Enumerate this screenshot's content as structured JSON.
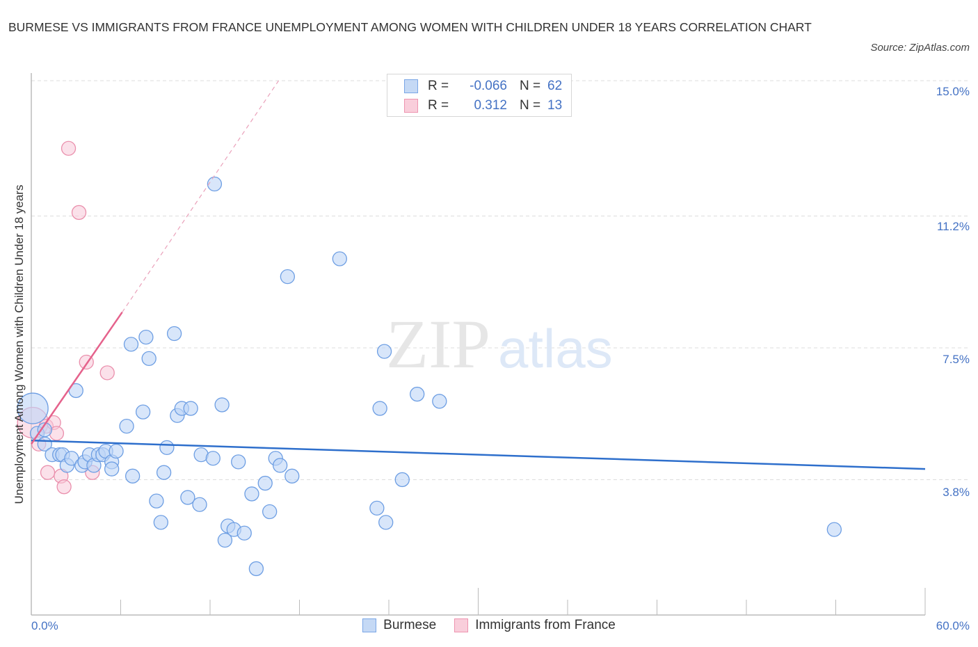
{
  "header": {
    "title": "BURMESE VS IMMIGRANTS FROM FRANCE UNEMPLOYMENT AMONG WOMEN WITH CHILDREN UNDER 18 YEARS CORRELATION CHART",
    "source": "Source: ZipAtlas.com"
  },
  "legend": {
    "series": [
      {
        "name": "Burmese",
        "r_label": "R =",
        "r_value": "-0.066",
        "n_label": "N =",
        "n_value": "62",
        "fill": "#c5d9f5",
        "stroke": "#7aa6e6"
      },
      {
        "name": "Immigrants from France",
        "r_label": "R =",
        "r_value": "0.312",
        "n_label": "N =",
        "n_value": "13",
        "fill": "#f9cedb",
        "stroke": "#ee94b0"
      }
    ]
  },
  "axes": {
    "ylabel": "Unemployment Among Women with Children Under 18 years",
    "yticks": [
      "15.0%",
      "11.2%",
      "7.5%",
      "3.8%"
    ],
    "xticks": [
      "0.0%",
      "60.0%"
    ]
  },
  "watermark": {
    "zip": "ZIP",
    "atlas": "atlas"
  },
  "colors": {
    "burmese_line": "#2e6fcc",
    "france_line": "#e5628c",
    "tick_text": "#4472c4",
    "grid": "#dddddd"
  },
  "chart_data": {
    "type": "scatter",
    "title": "BURMESE VS IMMIGRANTS FROM FRANCE UNEMPLOYMENT AMONG WOMEN WITH CHILDREN UNDER 18 YEARS CORRELATION CHART",
    "xlabel": "",
    "ylabel": "Unemployment Among Women with Children Under 18 years",
    "xlim": [
      0,
      60
    ],
    "ylim": [
      0,
      15.5
    ],
    "x_unit": "%",
    "y_unit": "%",
    "grid": true,
    "legend_position": "top-center",
    "yticks": [
      3.8,
      7.5,
      11.2,
      15.0
    ],
    "series": [
      {
        "name": "Burmese",
        "R": -0.066,
        "N": 62,
        "trend": {
          "x": [
            0,
            60
          ],
          "y": [
            4.9,
            4.1
          ]
        },
        "points": [
          [
            0.1,
            5.8,
            "large"
          ],
          [
            0.4,
            5.1
          ],
          [
            0.9,
            5.2
          ],
          [
            0.9,
            4.8
          ],
          [
            1.4,
            4.5
          ],
          [
            1.9,
            4.5
          ],
          [
            2.1,
            4.5
          ],
          [
            2.4,
            4.2
          ],
          [
            2.7,
            4.4
          ],
          [
            3.0,
            6.3
          ],
          [
            3.4,
            4.2
          ],
          [
            3.6,
            4.3
          ],
          [
            3.9,
            4.5
          ],
          [
            4.2,
            4.2
          ],
          [
            4.5,
            4.5
          ],
          [
            4.8,
            4.5
          ],
          [
            5.0,
            4.6
          ],
          [
            5.4,
            4.3
          ],
          [
            5.7,
            4.6
          ],
          [
            6.4,
            5.3
          ],
          [
            5.4,
            4.1
          ],
          [
            6.8,
            3.9
          ],
          [
            6.7,
            7.6
          ],
          [
            7.5,
            5.7
          ],
          [
            7.7,
            7.8
          ],
          [
            7.9,
            7.2
          ],
          [
            8.4,
            3.2
          ],
          [
            8.7,
            2.6
          ],
          [
            8.9,
            4.0
          ],
          [
            9.1,
            4.7
          ],
          [
            9.6,
            7.9
          ],
          [
            9.8,
            5.6
          ],
          [
            10.1,
            5.8
          ],
          [
            10.7,
            5.8
          ],
          [
            10.5,
            3.3
          ],
          [
            11.3,
            3.1
          ],
          [
            11.4,
            4.5
          ],
          [
            12.2,
            4.4
          ],
          [
            12.3,
            12.1
          ],
          [
            12.8,
            5.9
          ],
          [
            13.0,
            2.1
          ],
          [
            13.2,
            2.5
          ],
          [
            13.6,
            2.4
          ],
          [
            13.9,
            4.3
          ],
          [
            14.3,
            2.3
          ],
          [
            14.8,
            3.4
          ],
          [
            15.1,
            1.3
          ],
          [
            15.7,
            3.7
          ],
          [
            16.0,
            2.9
          ],
          [
            16.4,
            4.4
          ],
          [
            16.7,
            4.2
          ],
          [
            17.2,
            9.5
          ],
          [
            17.5,
            3.9
          ],
          [
            20.7,
            10.0
          ],
          [
            23.2,
            3.0
          ],
          [
            23.7,
            7.4
          ],
          [
            23.4,
            5.8
          ],
          [
            23.8,
            2.6
          ],
          [
            24.9,
            3.8
          ],
          [
            25.9,
            6.2
          ],
          [
            27.4,
            6.0
          ],
          [
            53.9,
            2.4
          ]
        ]
      },
      {
        "name": "Immigrants from France",
        "R": 0.312,
        "N": 13,
        "trend": {
          "x": [
            0,
            6.1
          ],
          "y": [
            4.8,
            8.5
          ],
          "extrapolated_dashed_to": [
            16.6,
            15.0
          ]
        },
        "points": [
          [
            0.1,
            5.4,
            "large"
          ],
          [
            0.5,
            4.8
          ],
          [
            1.0,
            5.3
          ],
          [
            1.1,
            4.0
          ],
          [
            1.5,
            5.4
          ],
          [
            1.7,
            5.1
          ],
          [
            2.0,
            3.9
          ],
          [
            2.2,
            3.6
          ],
          [
            2.5,
            13.1
          ],
          [
            3.2,
            11.3
          ],
          [
            3.7,
            7.1
          ],
          [
            4.1,
            4.0
          ],
          [
            5.1,
            6.8
          ]
        ]
      }
    ]
  }
}
